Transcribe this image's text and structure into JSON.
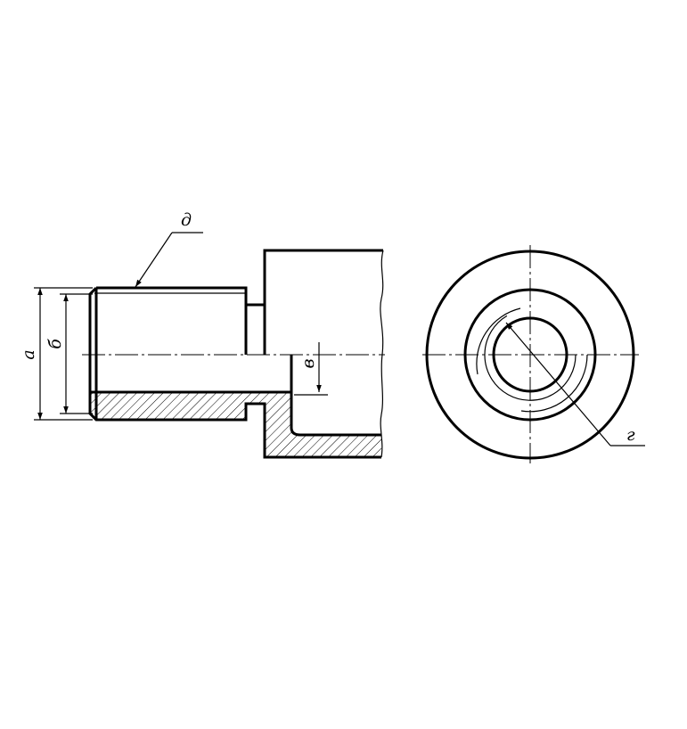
{
  "labels": {
    "a": "а",
    "b": "б",
    "v": "в",
    "g": "г",
    "d": "д"
  }
}
